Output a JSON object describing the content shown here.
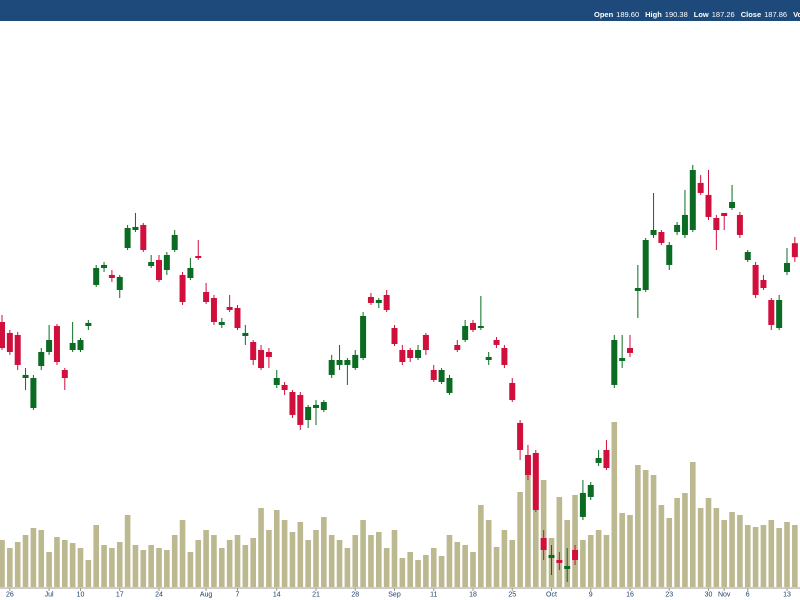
{
  "chart_data": {
    "type": "candlestick",
    "header": {
      "labels": [
        "Open",
        "High",
        "Low",
        "Close",
        "Volume"
      ],
      "value_labels": [
        "189.60",
        "190.38",
        "187.26",
        "187.86"
      ]
    },
    "categories": [
      null,
      "26",
      null,
      null,
      null,
      null,
      "Jul",
      null,
      null,
      null,
      "10",
      null,
      null,
      null,
      null,
      "17",
      null,
      null,
      null,
      null,
      "24",
      null,
      null,
      null,
      null,
      null,
      "Aug",
      null,
      null,
      null,
      "7",
      null,
      null,
      null,
      null,
      "14",
      null,
      null,
      null,
      null,
      "21",
      null,
      null,
      null,
      null,
      "28",
      null,
      null,
      null,
      null,
      "Sep",
      null,
      null,
      null,
      null,
      "11",
      null,
      null,
      null,
      null,
      "18",
      null,
      null,
      null,
      null,
      "25",
      null,
      null,
      null,
      null,
      "Oct",
      null,
      null,
      null,
      null,
      "9",
      null,
      null,
      null,
      null,
      "16",
      null,
      null,
      null,
      null,
      "23",
      null,
      null,
      null,
      null,
      "30",
      null,
      "Nov",
      null,
      null,
      "6",
      null,
      null,
      null,
      null,
      "13",
      null
    ],
    "open": [
      179.75,
      178.38,
      178.13,
      172.75,
      169,
      174.25,
      176,
      179.25,
      173.75,
      176.25,
      176.25,
      179.25,
      184.38,
      186.5,
      185.63,
      183.75,
      189,
      191.25,
      191.88,
      186.75,
      187.5,
      186.25,
      188.75,
      185.63,
      185.25,
      188,
      183.5,
      182.75,
      179.38,
      181.63,
      181.5,
      178,
      177.25,
      176.25,
      176,
      171.88,
      171.88,
      171,
      170.63,
      167.5,
      169,
      168.75,
      173.13,
      174.38,
      174.38,
      174,
      175.25,
      182.88,
      182.13,
      183.13,
      179,
      176.25,
      176.25,
      175.25,
      178.13,
      173.75,
      172.25,
      170.88,
      176.88,
      177.5,
      179.63,
      179,
      175,
      177.5,
      176.5,
      172.13,
      167.13,
      163.13,
      163.38,
      152.75,
      150.25,
      150,
      148.88,
      151.25,
      155.38,
      157.88,
      162.13,
      163.75,
      171.88,
      174.88,
      176.5,
      183.63,
      183.75,
      190.63,
      191,
      186.88,
      191,
      190.63,
      191.25,
      197.13,
      195.63,
      192.75,
      193.38,
      194,
      193.13,
      187.5,
      186.88,
      185,
      182.5,
      179,
      186,
      189.6
    ],
    "high": [
      180.63,
      178.75,
      178.5,
      174,
      173.13,
      176.5,
      179.38,
      179.5,
      174,
      179.75,
      177.75,
      180,
      186.88,
      187.25,
      186.25,
      185.63,
      191.88,
      193.38,
      192.13,
      188.13,
      188.13,
      188.5,
      191.25,
      186,
      187.75,
      190,
      184.63,
      183.13,
      180.25,
      183.13,
      181.88,
      179.38,
      177.5,
      176.88,
      176.5,
      173.75,
      172.25,
      171.25,
      171,
      169.38,
      170,
      170,
      175.63,
      176.88,
      175.25,
      176.25,
      181,
      183.38,
      182.75,
      183.75,
      179.38,
      176.88,
      176.5,
      176.88,
      178.38,
      174.38,
      174,
      173.13,
      177.5,
      180,
      180,
      183,
      176,
      177.88,
      176.88,
      172.75,
      167.5,
      164.38,
      163.75,
      153.75,
      151.88,
      151,
      151.5,
      151.88,
      160,
      159.75,
      163.75,
      165,
      178.13,
      178.13,
      178.13,
      186.88,
      190.25,
      195.88,
      191.25,
      189.75,
      192.25,
      196.25,
      199.38,
      198.13,
      198.75,
      193.13,
      193.38,
      196.88,
      193.5,
      188.75,
      187.25,
      185.63,
      182.75,
      183.13,
      189,
      190.38
    ],
    "low": [
      176.25,
      175.63,
      173.75,
      171.25,
      168.75,
      173.75,
      175.63,
      174.38,
      171.25,
      176,
      176,
      178.75,
      184.13,
      186,
      184.75,
      182.75,
      188.75,
      191,
      188.5,
      186.5,
      184.75,
      185.63,
      188.5,
      181.88,
      185,
      187.5,
      182,
      179.38,
      179,
      181,
      178.75,
      176.88,
      174.38,
      173.75,
      174,
      171.5,
      170.63,
      167.75,
      166.25,
      166.5,
      166.88,
      168.5,
      172.75,
      173.75,
      171.88,
      173.75,
      175,
      181.88,
      181.5,
      181,
      176.75,
      174.38,
      174.75,
      175,
      175.63,
      172.25,
      172,
      170.63,
      176,
      177.25,
      178.5,
      178.75,
      174.38,
      176.5,
      174,
      169.75,
      162.5,
      160,
      156,
      150,
      148.13,
      148.75,
      147.25,
      149.38,
      155,
      157.5,
      161.75,
      161.25,
      171.5,
      174,
      175.38,
      180.25,
      183.5,
      190.25,
      189.38,
      186.25,
      190.63,
      190.25,
      191,
      195.63,
      192.5,
      188.75,
      191.25,
      193.75,
      190.25,
      187.25,
      182.75,
      183.75,
      178.75,
      178.75,
      185.63,
      187.26
    ],
    "close": [
      176.5,
      176,
      174.38,
      173.13,
      172.75,
      176,
      177.5,
      174.75,
      172.75,
      177.13,
      177.5,
      179.63,
      186.5,
      186.88,
      185.25,
      185.38,
      191.5,
      191.63,
      188.75,
      187.25,
      185,
      188.13,
      190.63,
      182.25,
      186.5,
      187.75,
      182.25,
      179.75,
      179.75,
      181.25,
      179,
      178.38,
      175,
      174,
      175.38,
      172.75,
      171.25,
      168.13,
      166.88,
      169.13,
      169.38,
      169.75,
      175,
      175,
      175,
      175.63,
      180.5,
      182.13,
      182.5,
      181.25,
      177,
      174.75,
      175.25,
      176.25,
      176.25,
      172.5,
      173.75,
      172.75,
      176.25,
      179.25,
      178.75,
      179.25,
      175.38,
      176.88,
      174.38,
      170,
      163.75,
      160.63,
      156.25,
      151.25,
      150.63,
      149.63,
      149.25,
      150,
      158.38,
      159.38,
      162.75,
      161.5,
      177.5,
      175.25,
      175.88,
      184,
      190,
      191.25,
      189.63,
      189.38,
      191.88,
      193.13,
      198.75,
      195.88,
      192.88,
      191.25,
      193,
      194.75,
      190.63,
      188.5,
      183.13,
      184,
      179.38,
      182.5,
      187.13,
      187.86
    ],
    "volume": [
      23.5,
      19.5,
      22.5,
      26,
      29.5,
      28.5,
      17.5,
      25,
      23.5,
      22,
      19.5,
      13.5,
      31,
      21,
      19.5,
      22.5,
      36,
      21,
      18.5,
      21,
      19.5,
      18.5,
      26,
      33.5,
      17.5,
      23.5,
      28.5,
      26,
      19.5,
      23.5,
      26,
      21,
      24.5,
      39.5,
      28.5,
      38.5,
      33.5,
      27.5,
      32.5,
      23.5,
      28.5,
      35,
      26,
      23.5,
      19.5,
      26,
      33.5,
      26,
      27.5,
      19.5,
      28.5,
      14.5,
      17.5,
      13.5,
      16,
      19.5,
      15.5,
      26,
      22.5,
      21,
      17.5,
      41,
      33.5,
      20,
      28.5,
      23.5,
      47.5,
      66,
      61,
      53.5,
      24.5,
      45,
      33.5,
      46,
      23.5,
      26,
      28.5,
      26,
      82.5,
      37,
      36,
      61,
      58.5,
      56,
      41,
      34.5,
      44.5,
      47,
      62.5,
      39.5,
      44.5,
      39.5,
      33.5,
      37.5,
      36,
      31,
      30,
      31,
      33.5,
      29.5,
      32.5,
      31
    ],
    "ylim": [
      145,
      220
    ],
    "y2lim": [
      0,
      100
    ],
    "up_color": "#0b6b23",
    "down_color": "#d10f3c",
    "volume_color": "#bcb88f",
    "header_color": "#1d4a7a"
  }
}
